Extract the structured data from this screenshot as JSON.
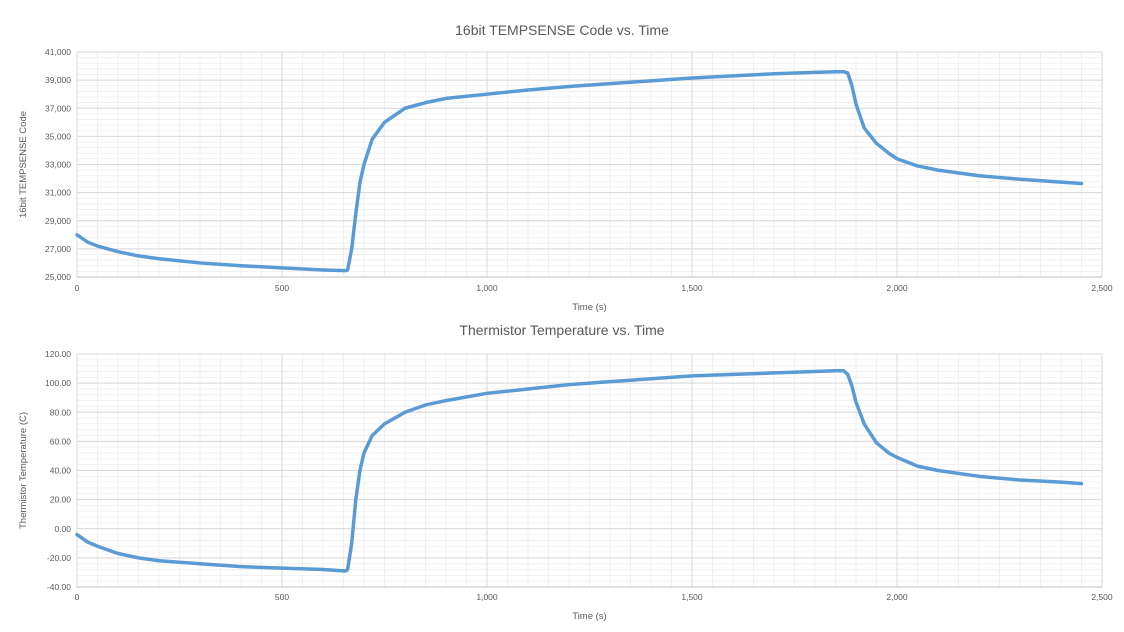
{
  "chart_data": [
    {
      "type": "line",
      "title": "16bit TEMPSENSE Code vs. Time",
      "xlabel": "Time (s)",
      "ylabel": "16bit TEMPSENSE Code",
      "xlim": [
        0,
        2500
      ],
      "ylim": [
        25000,
        41000
      ],
      "x_ticks": [
        0,
        500,
        1000,
        1500,
        2000,
        2500
      ],
      "x_tick_labels": [
        "0",
        "500",
        "1,000",
        "1,500",
        "2,000",
        "2,500"
      ],
      "y_ticks": [
        25000,
        27000,
        29000,
        31000,
        33000,
        35000,
        37000,
        39000,
        41000
      ],
      "y_tick_labels": [
        "25,000",
        "27,000",
        "29,000",
        "31,000",
        "33,000",
        "35,000",
        "37,000",
        "39,000",
        "41,000"
      ],
      "grid": true,
      "color": "#5b9bd5",
      "series": [
        {
          "x": [
            0,
            25,
            50,
            100,
            150,
            200,
            300,
            400,
            500,
            600,
            655,
            660,
            670,
            680,
            690,
            700,
            720,
            750,
            800,
            850,
            900,
            1000,
            1100,
            1200,
            1300,
            1400,
            1500,
            1600,
            1700,
            1800,
            1850,
            1870,
            1880,
            1890,
            1900,
            1920,
            1950,
            1980,
            2000,
            2050,
            2100,
            2200,
            2300,
            2400,
            2450
          ],
          "y": [
            28000,
            27500,
            27200,
            26800,
            26500,
            26300,
            26000,
            25800,
            25650,
            25500,
            25450,
            25500,
            27000,
            29500,
            31700,
            33000,
            34800,
            36000,
            37000,
            37400,
            37700,
            38000,
            38300,
            38550,
            38750,
            38950,
            39150,
            39300,
            39450,
            39550,
            39600,
            39600,
            39500,
            38600,
            37300,
            35600,
            34500,
            33800,
            33400,
            32900,
            32600,
            32200,
            31950,
            31750,
            31650
          ]
        }
      ]
    },
    {
      "type": "line",
      "title": "Thermistor Temperature vs. Time",
      "xlabel": "Time (s)",
      "ylabel": "Thermistor Temperature (C)",
      "xlim": [
        0,
        2500
      ],
      "ylim": [
        -40,
        120
      ],
      "x_ticks": [
        0,
        500,
        1000,
        1500,
        2000,
        2500
      ],
      "x_tick_labels": [
        "0",
        "500",
        "1,000",
        "1,500",
        "2,000",
        "2,500"
      ],
      "y_ticks": [
        -40,
        -20,
        0,
        20,
        40,
        60,
        80,
        100,
        120
      ],
      "y_tick_labels": [
        "-40.00",
        "-20.00",
        "0.00",
        "20.00",
        "40.00",
        "60.00",
        "80.00",
        "100.00",
        "120.00"
      ],
      "grid": true,
      "color": "#5b9bd5",
      "series": [
        {
          "x": [
            0,
            25,
            50,
            100,
            150,
            200,
            300,
            400,
            500,
            600,
            655,
            660,
            670,
            680,
            690,
            700,
            720,
            750,
            800,
            850,
            900,
            1000,
            1100,
            1200,
            1300,
            1400,
            1500,
            1600,
            1700,
            1800,
            1850,
            1870,
            1880,
            1890,
            1900,
            1920,
            1950,
            1980,
            2000,
            2050,
            2100,
            2200,
            2300,
            2400,
            2450
          ],
          "y": [
            -4,
            -9,
            -12,
            -17,
            -20,
            -22,
            -24,
            -26,
            -27,
            -28,
            -29,
            -28,
            -10,
            20,
            40,
            52,
            64,
            72,
            80,
            85,
            88,
            93,
            96,
            99,
            101,
            103,
            105,
            106,
            107,
            108,
            108.5,
            108.5,
            106,
            98,
            87,
            72,
            59,
            52,
            49,
            43,
            40,
            36,
            33.5,
            32,
            31
          ]
        }
      ]
    }
  ]
}
